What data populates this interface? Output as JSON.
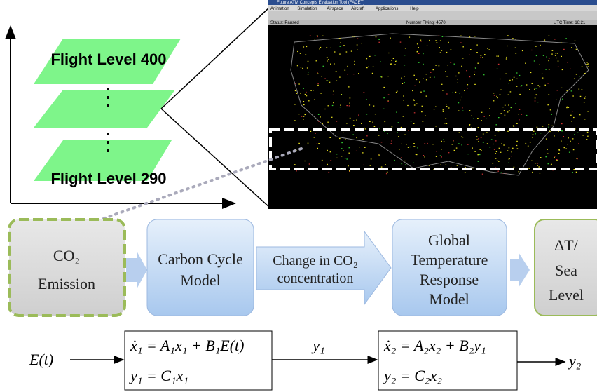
{
  "levels": {
    "top": "Flight Level 400",
    "bottom": "Flight Level 290"
  },
  "window": {
    "title": "Future ATM Concepts Evaluation Tool (FACET)",
    "menu": [
      "Animation",
      "Simulation",
      "Airspace",
      "Aircraft",
      "Applications",
      "Help"
    ],
    "status": "Status: Paused",
    "flying": "Number Flying: 4570",
    "time": "UTC Time: 16:21"
  },
  "boxes": {
    "emission": {
      "line1": "CO₂",
      "line2": "Emission"
    },
    "carbon": {
      "line1": "Carbon Cycle",
      "line2": "Model"
    },
    "change": {
      "line1": "Change in CO₂",
      "line2": "concentration"
    },
    "temperature": {
      "line1": "Global",
      "line2": "Temperature",
      "line3": "Response",
      "line4": "Model"
    },
    "result": {
      "line1": "ΔT/",
      "line2": "Sea",
      "line3": "Level"
    }
  },
  "equations": {
    "input": "E(t)",
    "sys1": {
      "line1": "ẋ₁ = A₁x₁ + B₁E(t)",
      "line2": "y₁ = C₁x₁"
    },
    "mid": "y₁",
    "sys2": {
      "line1": "ẋ₂ = A₂x₂ + B₂y₁",
      "line2": "y₂ = C₂x₂"
    },
    "output": "y₂"
  }
}
